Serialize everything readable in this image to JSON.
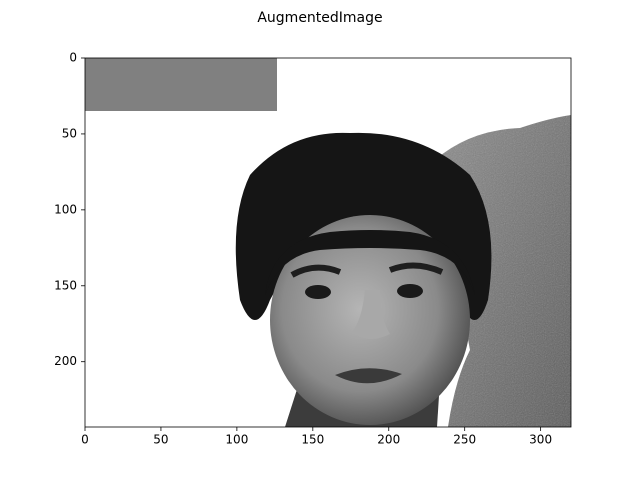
{
  "chart_data": {
    "type": "image",
    "title": "AugmentedImage",
    "xlim": [
      0,
      320
    ],
    "ylim": [
      243,
      0
    ],
    "xticks": [
      0,
      50,
      100,
      150,
      200,
      250,
      300
    ],
    "yticks": [
      0,
      50,
      100,
      150,
      200
    ]
  }
}
